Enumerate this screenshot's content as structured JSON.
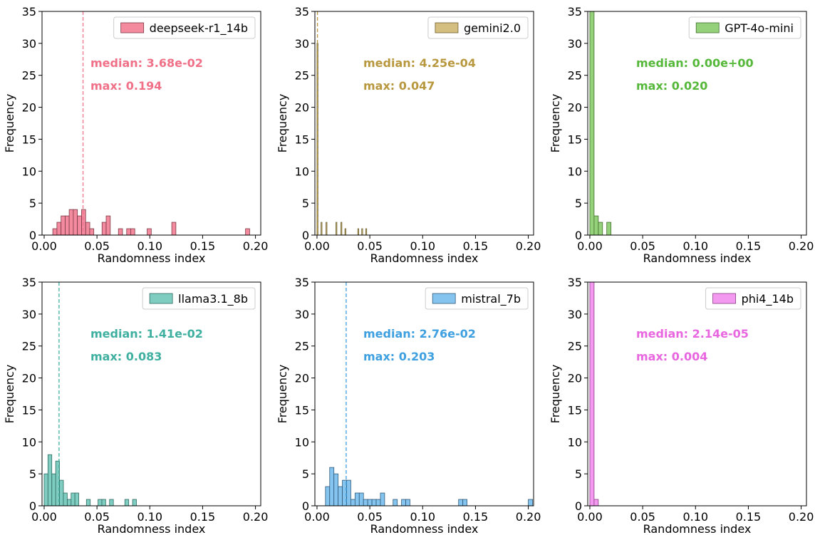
{
  "chart_data": [
    {
      "type": "bar",
      "series_name": "deepseek-r1_14b",
      "color": "#f48a9e",
      "edge": "#7a3844",
      "text_color": "#f07088",
      "median_line": 0.0368,
      "annotations": [
        "median: 3.68e-02",
        "max: 0.194"
      ],
      "bin_width": 0.00388,
      "bins": [
        {
          "x": 0.0082,
          "y": 1
        },
        {
          "x": 0.0121,
          "y": 2
        },
        {
          "x": 0.016,
          "y": 3
        },
        {
          "x": 0.0199,
          "y": 3
        },
        {
          "x": 0.0237,
          "y": 4
        },
        {
          "x": 0.0276,
          "y": 4
        },
        {
          "x": 0.0315,
          "y": 3
        },
        {
          "x": 0.0354,
          "y": 4
        },
        {
          "x": 0.0393,
          "y": 2
        },
        {
          "x": 0.0431,
          "y": 1
        },
        {
          "x": 0.0548,
          "y": 2
        },
        {
          "x": 0.0587,
          "y": 3
        },
        {
          "x": 0.0703,
          "y": 1
        },
        {
          "x": 0.0781,
          "y": 1
        },
        {
          "x": 0.0819,
          "y": 1
        },
        {
          "x": 0.0975,
          "y": 1
        },
        {
          "x": 0.1208,
          "y": 2
        },
        {
          "x": 0.1906,
          "y": 1
        }
      ],
      "xlabel": "Randomness index",
      "ylabel": "Frequency",
      "xlim": [
        -0.002,
        0.205
      ],
      "ylim": [
        0,
        35
      ],
      "xticks": [
        0.0,
        0.05,
        0.1,
        0.15,
        0.2
      ],
      "xtick_labels": [
        "0.00",
        "0.05",
        "0.10",
        "0.15",
        "0.20"
      ],
      "yticks": [
        0,
        5,
        10,
        15,
        20,
        25,
        30,
        35
      ],
      "legend": "top-right"
    },
    {
      "type": "bar",
      "series_name": "gemini2.0",
      "color": "#d4bf80",
      "edge": "#6e5f2c",
      "text_color": "#b8983e",
      "median_line": 0.000425,
      "annotations": [
        "median: 4.25e-04",
        "max: 0.047"
      ],
      "bin_width": 0.00094,
      "bins": [
        {
          "x": 0.0,
          "y": 30
        },
        {
          "x": 0.0038,
          "y": 2
        },
        {
          "x": 0.0085,
          "y": 2
        },
        {
          "x": 0.0179,
          "y": 2
        },
        {
          "x": 0.0226,
          "y": 2
        },
        {
          "x": 0.0264,
          "y": 1
        },
        {
          "x": 0.0386,
          "y": 1
        },
        {
          "x": 0.0423,
          "y": 1
        },
        {
          "x": 0.0461,
          "y": 1
        }
      ],
      "xlabel": "Randomness index",
      "ylabel": "Frequency",
      "xlim": [
        -0.002,
        0.205
      ],
      "ylim": [
        0,
        35
      ],
      "xticks": [
        0.0,
        0.05,
        0.1,
        0.15,
        0.2
      ],
      "xtick_labels": [
        "0.00",
        "0.05",
        "0.10",
        "0.15",
        "0.20"
      ],
      "yticks": [
        0,
        5,
        10,
        15,
        20,
        25,
        30,
        35
      ],
      "legend": "top-right"
    },
    {
      "type": "bar",
      "series_name": "GPT-4o-mini",
      "color": "#95d17a",
      "edge": "#3f6b2c",
      "text_color": "#56b83a",
      "median_line": null,
      "annotations": [
        "median: 0.00e+00",
        "max: 0.020"
      ],
      "bin_width": 0.004,
      "bins": [
        {
          "x": 0.0,
          "y": 35
        },
        {
          "x": 0.004,
          "y": 3
        },
        {
          "x": 0.008,
          "y": 2
        },
        {
          "x": 0.016,
          "y": 2
        }
      ],
      "xlabel": "Randomness index",
      "ylabel": "Frequency",
      "xlim": [
        -0.002,
        0.205
      ],
      "ylim": [
        0,
        35
      ],
      "xticks": [
        0.0,
        0.05,
        0.1,
        0.15,
        0.2
      ],
      "xtick_labels": [
        "0.00",
        "0.05",
        "0.10",
        "0.15",
        "0.20"
      ],
      "yticks": [
        0,
        5,
        10,
        15,
        20,
        25,
        30,
        35
      ],
      "legend": "top-right"
    },
    {
      "type": "bar",
      "series_name": "llama3.1_8b",
      "color": "#7ecdc0",
      "edge": "#2f6a62",
      "text_color": "#3fb0a0",
      "median_line": 0.0141,
      "annotations": [
        "median: 1.41e-02",
        "max: 0.083"
      ],
      "bin_width": 0.00364,
      "bins": [
        {
          "x": 0.0,
          "y": 5
        },
        {
          "x": 0.0036,
          "y": 8
        },
        {
          "x": 0.0073,
          "y": 5
        },
        {
          "x": 0.0109,
          "y": 7
        },
        {
          "x": 0.0146,
          "y": 4
        },
        {
          "x": 0.0182,
          "y": 2
        },
        {
          "x": 0.0219,
          "y": 1
        },
        {
          "x": 0.0255,
          "y": 2
        },
        {
          "x": 0.0291,
          "y": 2
        },
        {
          "x": 0.04,
          "y": 1
        },
        {
          "x": 0.051,
          "y": 1
        },
        {
          "x": 0.0546,
          "y": 1
        },
        {
          "x": 0.0619,
          "y": 1
        },
        {
          "x": 0.0764,
          "y": 1
        },
        {
          "x": 0.0837,
          "y": 1
        }
      ],
      "xlabel": "Randomness index",
      "ylabel": "Frequency",
      "xlim": [
        -0.002,
        0.205
      ],
      "ylim": [
        0,
        35
      ],
      "xticks": [
        0.0,
        0.05,
        0.1,
        0.15,
        0.2
      ],
      "xtick_labels": [
        "0.00",
        "0.05",
        "0.10",
        "0.15",
        "0.20"
      ],
      "yticks": [
        0,
        5,
        10,
        15,
        20,
        25,
        30,
        35
      ],
      "legend": "top-right"
    },
    {
      "type": "bar",
      "series_name": "mistral_7b",
      "color": "#85c4ee",
      "edge": "#2f5a7a",
      "text_color": "#3ea0e0",
      "median_line": 0.0276,
      "annotations": [
        "median: 2.76e-02",
        "max: 0.203"
      ],
      "bin_width": 0.004,
      "bins": [
        {
          "x": 0.008,
          "y": 3
        },
        {
          "x": 0.012,
          "y": 6
        },
        {
          "x": 0.016,
          "y": 5
        },
        {
          "x": 0.02,
          "y": 3
        },
        {
          "x": 0.024,
          "y": 4
        },
        {
          "x": 0.028,
          "y": 4
        },
        {
          "x": 0.032,
          "y": 1
        },
        {
          "x": 0.036,
          "y": 2
        },
        {
          "x": 0.04,
          "y": 2
        },
        {
          "x": 0.044,
          "y": 1
        },
        {
          "x": 0.048,
          "y": 1
        },
        {
          "x": 0.052,
          "y": 1
        },
        {
          "x": 0.056,
          "y": 1
        },
        {
          "x": 0.06,
          "y": 2
        },
        {
          "x": 0.072,
          "y": 1
        },
        {
          "x": 0.08,
          "y": 1
        },
        {
          "x": 0.084,
          "y": 1
        },
        {
          "x": 0.134,
          "y": 1
        },
        {
          "x": 0.138,
          "y": 1
        },
        {
          "x": 0.2,
          "y": 1
        }
      ],
      "xlabel": "Randomness index",
      "ylabel": "Frequency",
      "xlim": [
        -0.002,
        0.205
      ],
      "ylim": [
        0,
        35
      ],
      "xticks": [
        0.0,
        0.05,
        0.1,
        0.15,
        0.2
      ],
      "xtick_labels": [
        "0.00",
        "0.05",
        "0.10",
        "0.15",
        "0.20"
      ],
      "yticks": [
        0,
        5,
        10,
        15,
        20,
        25,
        30,
        35
      ],
      "legend": "top-right"
    },
    {
      "type": "bar",
      "series_name": "phi4_14b",
      "color": "#f39af0",
      "edge": "#8a3c87",
      "text_color": "#e866e0",
      "median_line": null,
      "annotations": [
        "median: 2.14e-05",
        "max: 0.004"
      ],
      "bin_width": 0.004,
      "bins": [
        {
          "x": 0.0,
          "y": 35
        },
        {
          "x": 0.004,
          "y": 1
        }
      ],
      "xlabel": "Randomness index",
      "ylabel": "Frequency",
      "xlim": [
        -0.002,
        0.205
      ],
      "ylim": [
        0,
        35
      ],
      "xticks": [
        0.0,
        0.05,
        0.1,
        0.15,
        0.2
      ],
      "xtick_labels": [
        "0.00",
        "0.05",
        "0.10",
        "0.15",
        "0.20"
      ],
      "yticks": [
        0,
        5,
        10,
        15,
        20,
        25,
        30,
        35
      ],
      "legend": "top-right"
    }
  ]
}
